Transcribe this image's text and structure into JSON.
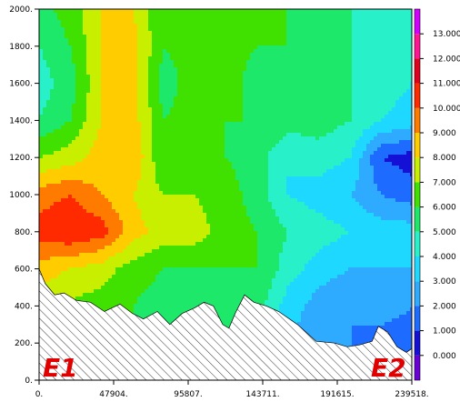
{
  "chart_data": {
    "type": "heatmap",
    "title": "",
    "xlabel": "",
    "ylabel": "",
    "xlim": [
      0,
      239518
    ],
    "ylim": [
      0,
      2000
    ],
    "x_ticks": [
      {
        "value": 0,
        "label": "0."
      },
      {
        "value": 47904,
        "label": "47904."
      },
      {
        "value": 95807,
        "label": "95807."
      },
      {
        "value": 143711,
        "label": "143711."
      },
      {
        "value": 191615,
        "label": "191615."
      },
      {
        "value": 239518,
        "label": "239518."
      }
    ],
    "y_ticks": [
      {
        "value": 0,
        "label": "0."
      },
      {
        "value": 200,
        "label": "200."
      },
      {
        "value": 400,
        "label": "400."
      },
      {
        "value": 600,
        "label": "600."
      },
      {
        "value": 800,
        "label": "800."
      },
      {
        "value": 1000,
        "label": "1000."
      },
      {
        "value": 1200,
        "label": "1200."
      },
      {
        "value": 1400,
        "label": "1400."
      },
      {
        "value": 1600,
        "label": "1600."
      },
      {
        "value": 1800,
        "label": "1800."
      },
      {
        "value": 2000,
        "label": "2000."
      }
    ],
    "colorbar": {
      "levels": [
        {
          "min": -1,
          "max": 0,
          "color": "#6a00d8",
          "label": ""
        },
        {
          "min": 0,
          "max": 1,
          "color": "#1410d6",
          "label": "0.000"
        },
        {
          "min": 1,
          "max": 2,
          "color": "#1e6cff",
          "label": "1.000"
        },
        {
          "min": 2,
          "max": 3,
          "color": "#2eaaff",
          "label": "2.000"
        },
        {
          "min": 3,
          "max": 4,
          "color": "#1fd8ff",
          "label": "3.000"
        },
        {
          "min": 4,
          "max": 5,
          "color": "#28f0c8",
          "label": "4.000"
        },
        {
          "min": 5,
          "max": 6,
          "color": "#1ee86a",
          "label": "5.000"
        },
        {
          "min": 6,
          "max": 7,
          "color": "#40e000",
          "label": "6.000"
        },
        {
          "min": 7,
          "max": 8,
          "color": "#c8ee00",
          "label": "7.000"
        },
        {
          "min": 8,
          "max": 9,
          "color": "#ffcc00",
          "label": "8.000"
        },
        {
          "min": 9,
          "max": 10,
          "color": "#ff7b00",
          "label": "9.000"
        },
        {
          "min": 10,
          "max": 11,
          "color": "#ff2a00",
          "label": "10.000"
        },
        {
          "min": 11,
          "max": 12,
          "color": "#e0001e",
          "label": "11.000"
        },
        {
          "min": 12,
          "max": 13,
          "color": "#ff1493",
          "label": "12.000"
        },
        {
          "min": 13,
          "max": 14,
          "color": "#d000ff",
          "label": "13.000"
        }
      ]
    },
    "terrain": {
      "x": [
        0,
        4000,
        10000,
        16000,
        24000,
        33000,
        42000,
        52000,
        60000,
        67000,
        76000,
        84000,
        92000,
        100000,
        106000,
        112000,
        118000,
        122000,
        126000,
        132000,
        138000,
        146000,
        154000,
        166000,
        178000,
        190000,
        198000,
        206000,
        214000,
        218000,
        224000,
        230000,
        236000,
        239518
      ],
      "y": [
        600,
        520,
        460,
        470,
        430,
        420,
        370,
        410,
        360,
        330,
        370,
        300,
        360,
        390,
        420,
        400,
        300,
        280,
        360,
        460,
        420,
        400,
        370,
        300,
        210,
        200,
        180,
        190,
        210,
        290,
        260,
        180,
        150,
        170
      ]
    },
    "field": {
      "x": [
        0,
        20000,
        40000,
        60000,
        80000,
        100000,
        120000,
        140000,
        160000,
        180000,
        200000,
        220000,
        239518
      ],
      "y": [
        0,
        200,
        400,
        600,
        800,
        1000,
        1200,
        1400,
        1600,
        1800,
        2000
      ],
      "values": [
        [
          6.5,
          6.5,
          6.0,
          6.0,
          6.0,
          6.0,
          6.0,
          5.0,
          3.0,
          2.5,
          2.0,
          1.5,
          1.5
        ],
        [
          6.5,
          6.5,
          6.2,
          6.0,
          6.0,
          6.0,
          6.0,
          5.0,
          3.0,
          2.5,
          2.0,
          1.5,
          1.5
        ],
        [
          7.5,
          6.8,
          6.5,
          6.0,
          5.5,
          5.0,
          5.5,
          5.5,
          3.5,
          2.5,
          2.0,
          2.5,
          2.0
        ],
        [
          8.5,
          8.0,
          7.5,
          6.5,
          6.0,
          6.0,
          6.0,
          6.0,
          4.5,
          3.5,
          3.0,
          3.0,
          3.0
        ],
        [
          10.5,
          11.0,
          10.5,
          8.5,
          7.5,
          7.5,
          6.5,
          6.0,
          5.0,
          4.5,
          4.0,
          3.5,
          3.5
        ],
        [
          9.5,
          10.0,
          9.0,
          8.0,
          7.0,
          7.0,
          6.5,
          5.5,
          4.0,
          3.5,
          3.0,
          2.0,
          1.5
        ],
        [
          7.0,
          7.5,
          8.5,
          9.0,
          6.0,
          6.5,
          6.0,
          5.5,
          4.0,
          4.5,
          4.0,
          1.0,
          0.5
        ],
        [
          5.0,
          6.0,
          8.0,
          8.5,
          6.0,
          6.5,
          6.0,
          6.0,
          5.5,
          5.5,
          5.0,
          4.0,
          3.5
        ],
        [
          4.5,
          5.5,
          8.0,
          8.5,
          5.5,
          6.5,
          6.5,
          5.5,
          5.5,
          5.0,
          5.0,
          4.5,
          4.0
        ],
        [
          5.0,
          6.0,
          8.0,
          8.5,
          6.0,
          6.5,
          6.5,
          6.0,
          6.0,
          5.5,
          5.0,
          4.5,
          4.0
        ],
        [
          5.5,
          6.5,
          8.0,
          8.0,
          6.0,
          6.5,
          6.5,
          6.0,
          6.0,
          5.5,
          5.0,
          4.5,
          4.0
        ]
      ]
    },
    "annotations": [
      {
        "text": "E1",
        "position": "bottom-left"
      },
      {
        "text": "E2",
        "position": "bottom-right"
      }
    ],
    "grid": false,
    "legend_position": "right"
  }
}
